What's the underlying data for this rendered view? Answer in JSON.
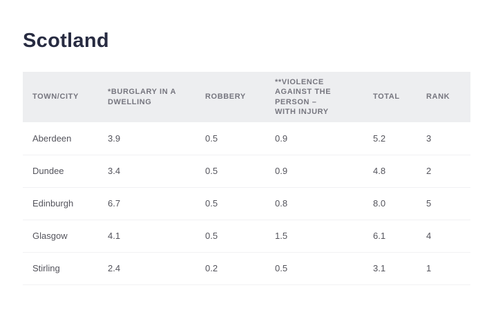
{
  "page": {
    "title": "Scotland"
  },
  "table": {
    "columns": [
      {
        "id": "town",
        "label": "TOWN/CITY"
      },
      {
        "id": "burglary",
        "label": "*BURGLARY IN A DWELLING"
      },
      {
        "id": "robbery",
        "label": "ROBBERY"
      },
      {
        "id": "violence",
        "label": "**VIOLENCE AGAINST THE PERSON – WITH INJURY"
      },
      {
        "id": "total",
        "label": "TOTAL"
      },
      {
        "id": "rank",
        "label": "RANK"
      }
    ],
    "rows": [
      {
        "town": "Aberdeen",
        "burglary": "3.9",
        "robbery": "0.5",
        "violence": "0.9",
        "total": "5.2",
        "rank": "3"
      },
      {
        "town": "Dundee",
        "burglary": "3.4",
        "robbery": "0.5",
        "violence": "0.9",
        "total": "4.8",
        "rank": "2"
      },
      {
        "town": "Edinburgh",
        "burglary": "6.7",
        "robbery": "0.5",
        "violence": "0.8",
        "total": "8.0",
        "rank": "5"
      },
      {
        "town": "Glasgow",
        "burglary": "4.1",
        "robbery": "0.5",
        "violence": "1.5",
        "total": "6.1",
        "rank": "4"
      },
      {
        "town": "Stirling",
        "burglary": "2.4",
        "robbery": "0.2",
        "violence": "0.5",
        "total": "3.1",
        "rank": "1"
      }
    ]
  },
  "colors": {
    "title_text": "#272b41",
    "header_bg": "#edeef0",
    "header_text": "#76767f",
    "body_text": "#54545c",
    "row_divider": "#f1f1f3",
    "page_bg": "#ffffff"
  },
  "chart_data": {
    "type": "table",
    "title": "Scotland",
    "columns": [
      "TOWN/CITY",
      "*BURGLARY IN A DWELLING",
      "ROBBERY",
      "**VIOLENCE AGAINST THE PERSON – WITH INJURY",
      "TOTAL",
      "RANK"
    ],
    "rows": [
      [
        "Aberdeen",
        3.9,
        0.5,
        0.9,
        5.2,
        3
      ],
      [
        "Dundee",
        3.4,
        0.5,
        0.9,
        4.8,
        2
      ],
      [
        "Edinburgh",
        6.7,
        0.5,
        0.8,
        8.0,
        5
      ],
      [
        "Glasgow",
        4.1,
        0.5,
        1.5,
        6.1,
        4
      ],
      [
        "Stirling",
        2.4,
        0.2,
        0.5,
        3.1,
        1
      ]
    ]
  }
}
